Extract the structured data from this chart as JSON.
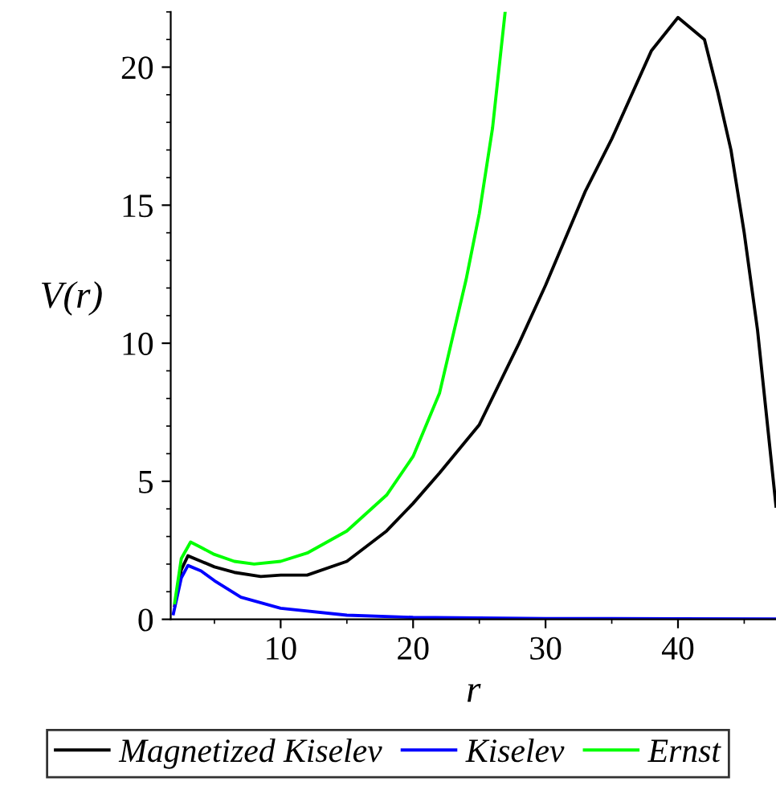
{
  "chart_data": {
    "type": "line",
    "xlabel": "r",
    "ylabel": "V(r)",
    "xlim": [
      1.7,
      47.4
    ],
    "ylim": [
      0,
      22
    ],
    "xticks": [
      10,
      20,
      30,
      40
    ],
    "yticks": [
      0,
      5,
      10,
      15,
      20
    ],
    "grid": false,
    "legend": "bottom",
    "marker": "none",
    "line_style": "solid",
    "series": [
      {
        "name": "Magnetized Kiselev",
        "color": "#000000",
        "x": [
          2.0,
          2.5,
          3.0,
          4.0,
          5.0,
          6.5,
          8.5,
          10,
          12,
          15,
          18,
          20,
          22,
          25,
          28,
          30,
          33,
          35,
          38,
          40,
          42,
          43,
          44,
          45,
          46,
          47.4
        ],
        "values": [
          0.5,
          1.8,
          2.3,
          2.1,
          1.9,
          1.7,
          1.55,
          1.6,
          1.6,
          2.1,
          3.2,
          4.2,
          5.3,
          7.05,
          10.0,
          12.1,
          15.5,
          17.4,
          20.6,
          21.8,
          21.0,
          19.1,
          17.0,
          14.0,
          10.5,
          4.1
        ]
      },
      {
        "name": "Kiselev",
        "color": "#0000ff",
        "x": [
          1.9,
          2.5,
          3.0,
          4.0,
          5.0,
          7.0,
          10,
          15,
          20,
          30,
          40,
          47.4
        ],
        "values": [
          0.2,
          1.5,
          1.95,
          1.75,
          1.4,
          0.8,
          0.4,
          0.15,
          0.07,
          0.03,
          0.02,
          0.01
        ]
      },
      {
        "name": "Ernst",
        "color": "#00ff00",
        "x": [
          2.0,
          2.5,
          3.2,
          4.0,
          5.0,
          6.5,
          8.0,
          10,
          12,
          15,
          18,
          20,
          22,
          24,
          25,
          26,
          26.95
        ],
        "values": [
          0.6,
          2.2,
          2.8,
          2.6,
          2.35,
          2.1,
          2.0,
          2.1,
          2.4,
          3.2,
          4.5,
          5.9,
          8.2,
          12.3,
          14.7,
          17.8,
          22.0
        ]
      }
    ]
  }
}
